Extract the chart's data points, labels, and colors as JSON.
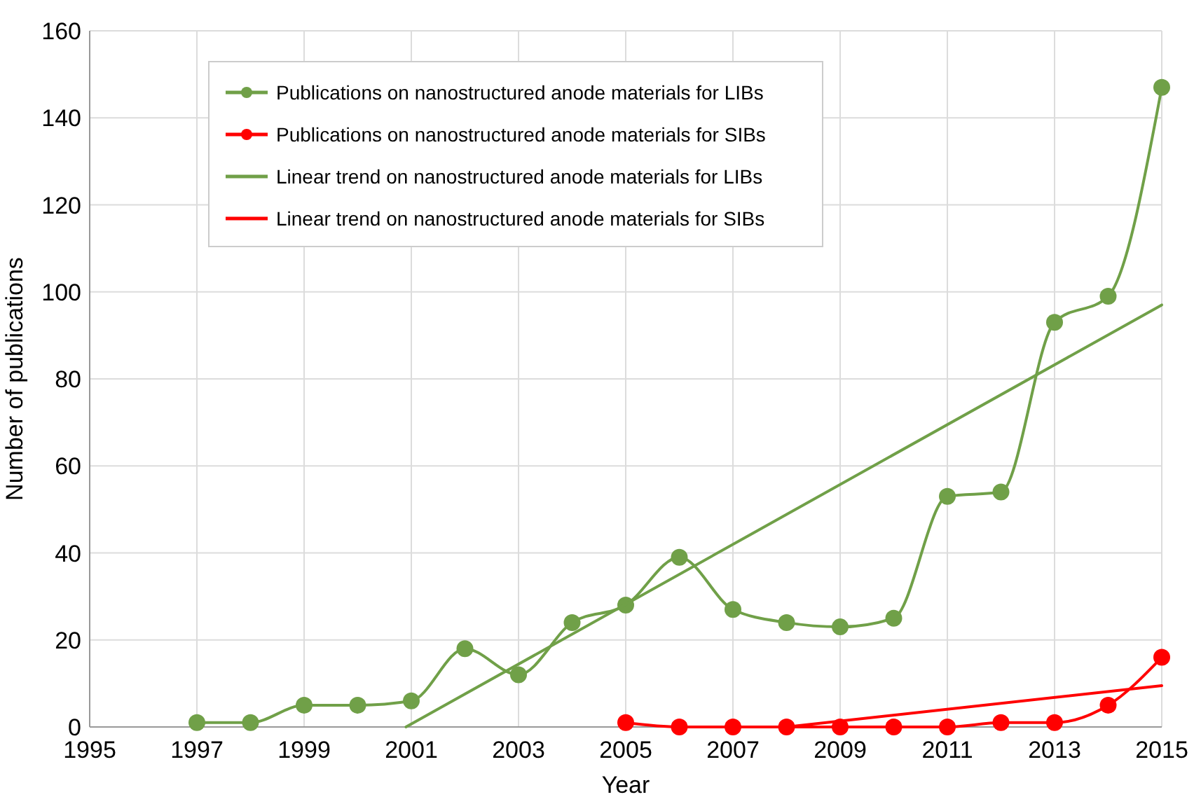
{
  "chart_data": {
    "type": "line",
    "xlabel": "Year",
    "ylabel": "Number of publications",
    "xlim": [
      1995,
      2015
    ],
    "xticks": [
      1995,
      1997,
      1999,
      2001,
      2003,
      2005,
      2007,
      2009,
      2011,
      2013,
      2015
    ],
    "ylim": [
      0,
      160
    ],
    "yticks": [
      0,
      20,
      40,
      60,
      80,
      100,
      120,
      140,
      160
    ],
    "grid": true,
    "legend": "top left",
    "series": [
      {
        "name": "Publications on nanostructured anode materials for LIBs",
        "color": "#70a048",
        "marker": "circle",
        "x": [
          1997,
          1998,
          1999,
          2000,
          2001,
          2002,
          2003,
          2004,
          2005,
          2006,
          2007,
          2008,
          2009,
          2010,
          2011,
          2012,
          2013,
          2014,
          2015
        ],
        "values": [
          1,
          1,
          5,
          5,
          6,
          18,
          12,
          24,
          28,
          39,
          27,
          24,
          23,
          25,
          53,
          54,
          93,
          99,
          147
        ]
      },
      {
        "name": "Publications on nanostructured anode materials for SIBs",
        "color": "#ff0000",
        "marker": "circle",
        "x": [
          2005,
          2006,
          2007,
          2008,
          2009,
          2010,
          2011,
          2012,
          2013,
          2014,
          2015
        ],
        "values": [
          1,
          0,
          0,
          0,
          0,
          0,
          0,
          1,
          1,
          5,
          16
        ]
      },
      {
        "name": "Linear trend on nanostructured anode materials for LIBs",
        "color": "#70a048",
        "marker": "none",
        "x": [
          2000.9,
          2015
        ],
        "values": [
          0,
          97
        ]
      },
      {
        "name": "Linear trend on nanostructured anode materials for SIBs",
        "color": "#ff0000",
        "marker": "none",
        "x": [
          2008,
          2015
        ],
        "values": [
          0,
          9.5
        ]
      }
    ]
  }
}
